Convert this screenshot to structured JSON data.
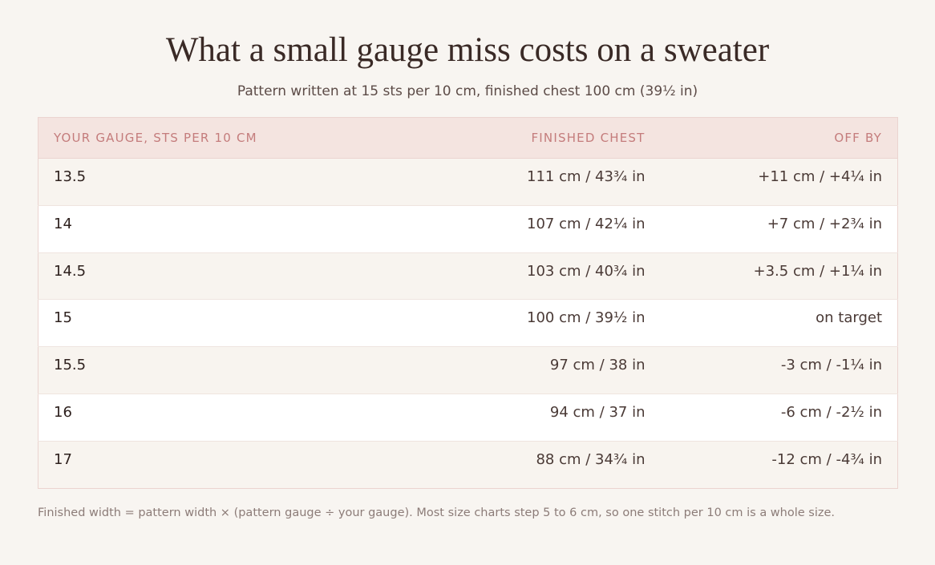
{
  "title": "What a small gauge miss costs on a sweater",
  "subtitle": "Pattern written at 15 sts per 10 cm, finished chest 100 cm (39½ in)",
  "table": {
    "headers": [
      "YOUR GAUGE, STS PER 10 CM",
      "FINISHED CHEST",
      "OFF BY"
    ],
    "rows": [
      [
        "13.5",
        "111 cm / 43¾ in",
        "+11 cm / +4¼ in"
      ],
      [
        "14",
        "107 cm / 42¼ in",
        "+7 cm / +2¾ in"
      ],
      [
        "14.5",
        "103 cm / 40¾ in",
        "+3.5 cm / +1¼ in"
      ],
      [
        "15",
        "100 cm / 39½ in",
        "on target"
      ],
      [
        "15.5",
        "97 cm / 38 in",
        "-3 cm / -1¼ in"
      ],
      [
        "16",
        "94 cm / 37 in",
        "-6 cm / -2½ in"
      ],
      [
        "17",
        "88 cm / 34¾ in",
        "-12 cm / -4¾ in"
      ]
    ]
  },
  "footnote": "Finished width = pattern width × (pattern gauge ÷ your gauge). Most size charts step 5 to 6 cm, so one stitch per 10 cm is a whole size."
}
